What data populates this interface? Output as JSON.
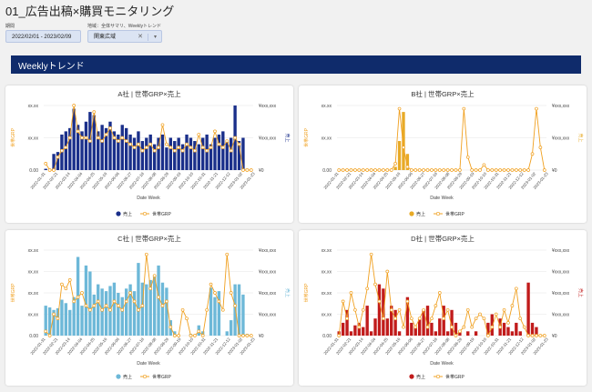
{
  "page_title": "01_広告出稿×購買モニタリング",
  "filters": {
    "period_label": "期間",
    "period_value": "2022/02/01 - 2023/02/09",
    "region_label": "地域：全体サマリ、Weeklyトレンド",
    "region_value": "関東広域",
    "clear_glyph": "✕",
    "caret_glyph": "▾"
  },
  "section_title": "Weeklyトレンド",
  "common_axis": {
    "xlabel": "Date Week",
    "left_axis_title": "世帯GRP",
    "right_axis_title": "売上",
    "left_ticks": [
      "xx.xx",
      "xx.xx",
      "0.00"
    ],
    "right_ticks": [
      "¥xxx,xxx",
      "¥xxx,xxx",
      "¥0"
    ],
    "left_ticks_c": [
      "xx.xx",
      "xx.xx",
      "xx.xx",
      "xx.xx",
      "0.00"
    ],
    "right_ticks_c": [
      "¥xxx,xxx",
      "¥xxx,xxx",
      "¥xxx,xxx",
      "¥xxx,xxx",
      "¥0"
    ],
    "date_ticks": [
      "2022-01-31",
      "2022-02-21",
      "2022-03-14",
      "2022-04-04",
      "2022-04-25",
      "2022-05-16",
      "2022-06-06",
      "2022-06-27",
      "2022-07-18",
      "2022-08-08",
      "2022-08-29",
      "2022-09-19",
      "2022-10-10",
      "2022-10-31",
      "2022-11-21",
      "2022-12-12",
      "2023-01-02",
      "2023-01-23"
    ],
    "legend_sales": "売上",
    "legend_grp": "世帯GRP",
    "grp_color": "#f0a020"
  },
  "chart_data": [
    {
      "type": "bar",
      "title": "A社 | 世帯GRP×売上",
      "bar_color": "#1a2f8a",
      "weeks": 52,
      "series": [
        {
          "name": "売上",
          "values": [
            0.02,
            0,
            0.25,
            0.28,
            0.55,
            0.6,
            0.65,
            0.95,
            0.7,
            0.6,
            0.75,
            0.9,
            0.85,
            0.6,
            0.7,
            0.65,
            0.75,
            0.6,
            0.55,
            0.7,
            0.65,
            0.55,
            0.5,
            0.6,
            0.45,
            0.5,
            0.55,
            0.4,
            0.5,
            0.55,
            0.35,
            0.5,
            0.45,
            0.5,
            0.4,
            0.55,
            0.5,
            0.45,
            0.4,
            0.5,
            0.55,
            0.4,
            0.5,
            0.55,
            0.6,
            0.45,
            0.5,
            1.0,
            0.45,
            0.5,
            0.02,
            0
          ]
        },
        {
          "name": "世帯GRP",
          "values": [
            0.1,
            0,
            0.0,
            0.2,
            0.3,
            0.35,
            0.5,
            1.0,
            0.6,
            0.5,
            0.5,
            0.45,
            0.9,
            0.5,
            0.45,
            0.55,
            0.65,
            0.5,
            0.45,
            0.5,
            0.45,
            0.4,
            0.35,
            0.4,
            0.3,
            0.35,
            0.4,
            0.3,
            0.35,
            0.7,
            0.4,
            0.35,
            0.3,
            0.35,
            0.3,
            0.4,
            0.35,
            0.3,
            0.55,
            0.35,
            0.3,
            0.35,
            0.6,
            0.4,
            0.35,
            0.45,
            0.3,
            0.5,
            0.4,
            0,
            0,
            0
          ]
        }
      ]
    },
    {
      "type": "bar",
      "title": "B社 | 世帯GRP×売上",
      "bar_color": "#e8aa26",
      "weeks": 52,
      "series": [
        {
          "name": "売上",
          "values": [
            0,
            0,
            0,
            0,
            0,
            0,
            0,
            0,
            0,
            0,
            0,
            0,
            0,
            0,
            0.05,
            0.45,
            0.9,
            0.25,
            0,
            0,
            0,
            0,
            0,
            0,
            0,
            0,
            0,
            0,
            0,
            0,
            0,
            0,
            0,
            0,
            0,
            0,
            0,
            0,
            0,
            0,
            0,
            0,
            0,
            0,
            0,
            0,
            0,
            0,
            0,
            0,
            0,
            0
          ]
        },
        {
          "name": "世帯GRP",
          "values": [
            0,
            0,
            0,
            0,
            0,
            0,
            0,
            0,
            0,
            0,
            0,
            0,
            0,
            0,
            0.1,
            0.95,
            0.35,
            0.05,
            0,
            0,
            0,
            0,
            0,
            0,
            0,
            0,
            0,
            0,
            0,
            0,
            0,
            0.95,
            0.2,
            0,
            0,
            0,
            0.08,
            0,
            0,
            0,
            0,
            0,
            0,
            0,
            0,
            0,
            0,
            0,
            0.25,
            0.95,
            0.35,
            0
          ]
        }
      ]
    },
    {
      "type": "bar",
      "title": "C社 | 世帯GRP×売上",
      "bar_color": "#6db8d8",
      "weeks": 52,
      "series": [
        {
          "name": "売上",
          "values": [
            0.35,
            0.33,
            0.3,
            0.32,
            0.42,
            0.38,
            0.3,
            0.45,
            0.92,
            0.35,
            0.82,
            0.75,
            0.48,
            0.6,
            0.55,
            0.52,
            0.58,
            0.62,
            0.5,
            0.45,
            0.55,
            0.6,
            0.52,
            0.85,
            0.62,
            0.6,
            0.65,
            0.7,
            0.82,
            0.62,
            0.56,
            0.18,
            0.05,
            0,
            0,
            0,
            0.02,
            0,
            0.12,
            0.05,
            0,
            0.56,
            0.45,
            0.52,
            0,
            0.05,
            0.18,
            0.6,
            0.6,
            0.48,
            0.02,
            0
          ]
        },
        {
          "name": "世帯GRP",
          "values": [
            0.05,
            0,
            0.25,
            0.2,
            0.6,
            0.55,
            0.65,
            0.4,
            0.45,
            0.5,
            0.35,
            0.3,
            0.35,
            0.4,
            0.3,
            0.35,
            0.3,
            0.4,
            0.35,
            0.3,
            0.4,
            0.5,
            0.4,
            0.3,
            0.35,
            0.95,
            0.55,
            0.7,
            0.45,
            0.35,
            0.4,
            0.1,
            0,
            0,
            0.3,
            0.2,
            0,
            0,
            0.05,
            0,
            0.3,
            0.6,
            0.5,
            0.4,
            0.3,
            0.95,
            0.5,
            0.35,
            0,
            0,
            0,
            0
          ]
        }
      ]
    },
    {
      "type": "bar",
      "title": "D社 | 世帯GRP×売上",
      "bar_color": "#c11b1b",
      "weeks": 52,
      "series": [
        {
          "name": "売上",
          "values": [
            0.05,
            0.15,
            0.3,
            0.05,
            0.12,
            0.15,
            0.1,
            0.35,
            0.05,
            0.2,
            0.6,
            0.55,
            0.2,
            0.35,
            0.3,
            0.05,
            0,
            0.45,
            0.15,
            0.1,
            0.2,
            0.3,
            0.35,
            0.15,
            0.05,
            0.2,
            0.35,
            0.05,
            0.3,
            0.15,
            0.05,
            0,
            0.05,
            0,
            0.05,
            0,
            0,
            0.15,
            0.25,
            0,
            0.2,
            0.15,
            0.1,
            0.05,
            0.15,
            0.05,
            0,
            0.62,
            0.15,
            0.1,
            0,
            0
          ]
        },
        {
          "name": "世帯GRP",
          "values": [
            0,
            0.4,
            0.2,
            0.5,
            0.3,
            0.1,
            0.3,
            0.55,
            0.95,
            0.6,
            0.4,
            0.2,
            0.75,
            0.3,
            0.2,
            0.3,
            0.1,
            0.4,
            0.2,
            0.1,
            0.2,
            0.3,
            0.1,
            0.2,
            0.35,
            0.5,
            0.2,
            0.3,
            0.1,
            0,
            0.05,
            0.1,
            0.3,
            0.1,
            0.2,
            0.25,
            0.2,
            0,
            0.1,
            0.25,
            0.1,
            0.3,
            0.15,
            0.35,
            0.55,
            0.2,
            0.1,
            0,
            0,
            0,
            0,
            0
          ]
        }
      ]
    }
  ]
}
